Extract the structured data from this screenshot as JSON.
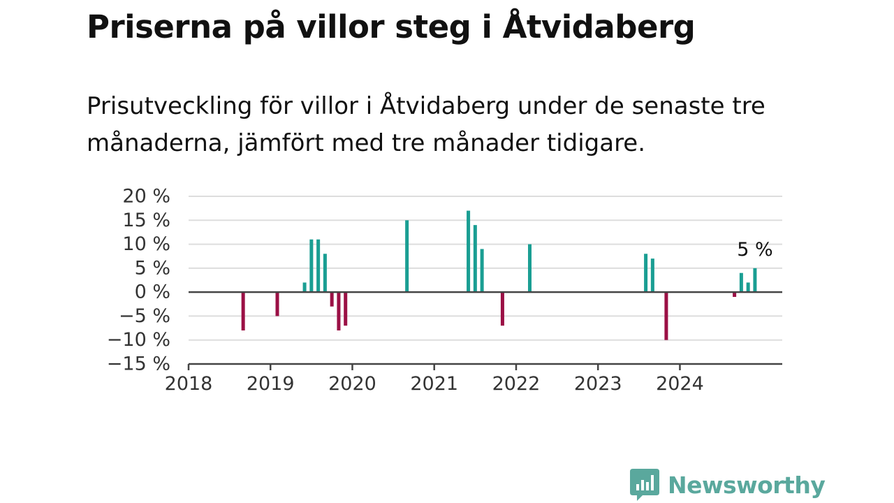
{
  "header": {
    "title": "Priserna på villor steg i Åtvidaberg",
    "subtitle": "Prisutveckling för villor i Åtvidaberg under de senaste tre månaderna, jämfört med tre månader tidigare."
  },
  "chart_data": {
    "type": "bar",
    "title": "Priserna på villor steg i Åtvidaberg",
    "subtitle": "Prisutveckling för villor i Åtvidaberg under de senaste tre månaderna, jämfört med tre månader tidigare.",
    "ylim": [
      -15,
      20
    ],
    "xlim": [
      "2018-01",
      "2025-04"
    ],
    "y_ticks": [
      20,
      15,
      10,
      5,
      0,
      -5,
      -10,
      -15
    ],
    "y_tick_labels": [
      "20 %",
      "15 %",
      "10 %",
      "5 %",
      "0 %",
      "−5 %",
      "−10 %",
      "−15 %"
    ],
    "x_ticks": [
      "2018",
      "2019",
      "2020",
      "2021",
      "2022",
      "2023",
      "2024"
    ],
    "grid": true,
    "colors": {
      "positive": "#1a9e93",
      "negative": "#9b1045",
      "zero_line": "#444444",
      "grid": "#dddddd"
    },
    "x": [
      "2018-09",
      "2019-02",
      "2019-06",
      "2019-07",
      "2019-08",
      "2019-09",
      "2019-10",
      "2019-11",
      "2019-12",
      "2020-09",
      "2021-06",
      "2021-07",
      "2021-08",
      "2021-11",
      "2022-03",
      "2023-08",
      "2023-09",
      "2023-11",
      "2024-09",
      "2024-10",
      "2024-11",
      "2024-12"
    ],
    "values": [
      -8,
      -5,
      2,
      11,
      11,
      8,
      -3,
      -8,
      -7,
      15,
      17,
      14,
      9,
      -7,
      10,
      8,
      7,
      -10,
      -1,
      4,
      2,
      5
    ],
    "annotation": {
      "x": "2024-12",
      "value": 5,
      "text": "5 %"
    }
  },
  "logo": {
    "text": "Newsworthy",
    "icon": "bar-chart-speech-bubble-icon",
    "color": "#5aa89d"
  }
}
